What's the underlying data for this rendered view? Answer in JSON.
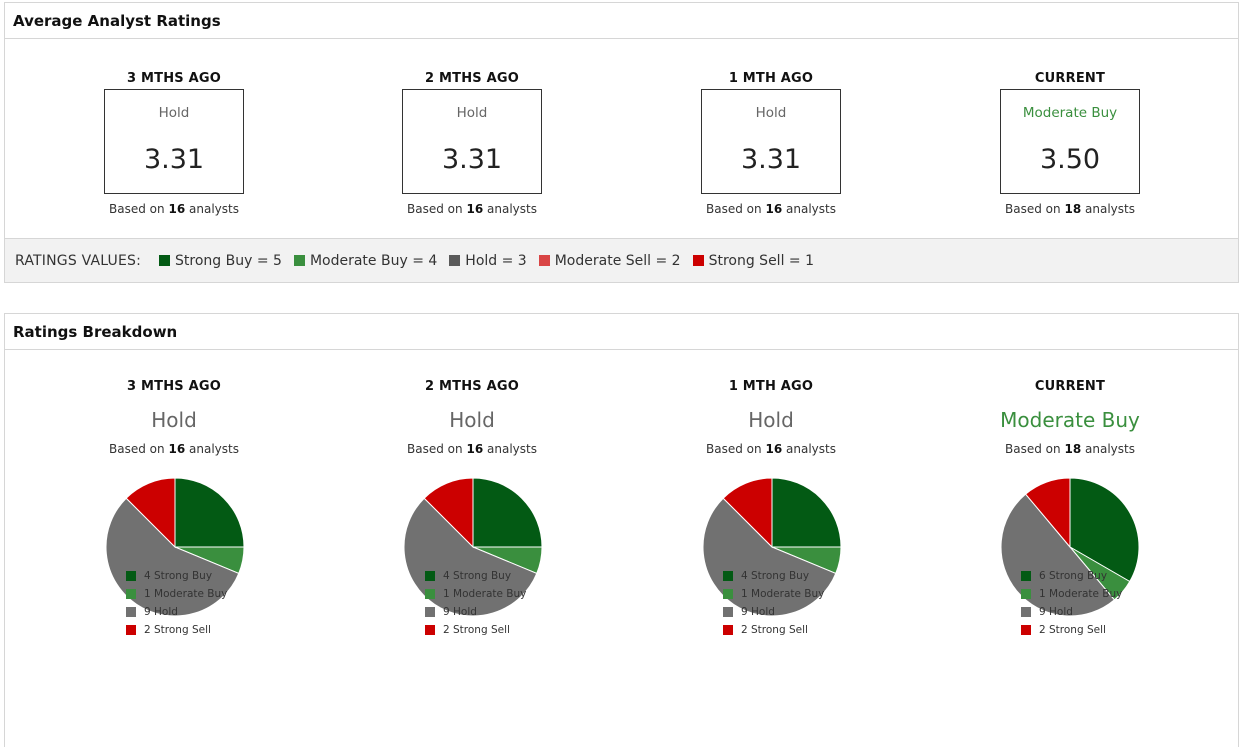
{
  "colors": {
    "strong_buy": "#035a14",
    "moderate_buy": "#3a8f3e",
    "hold": "#717171",
    "moderate_sell": "#d43d3d",
    "strong_sell": "#cc0000",
    "current_label": "#3a8f3e"
  },
  "average": {
    "title": "Average Analyst Ratings",
    "columns": [
      {
        "period": "3 MTHS AGO",
        "rating": "Hold",
        "value": "3.31",
        "based_prefix": "Based on",
        "count": "16",
        "based_suffix": "analysts"
      },
      {
        "period": "2 MTHS AGO",
        "rating": "Hold",
        "value": "3.31",
        "based_prefix": "Based on",
        "count": "16",
        "based_suffix": "analysts"
      },
      {
        "period": "1 MTH AGO",
        "rating": "Hold",
        "value": "3.31",
        "based_prefix": "Based on",
        "count": "16",
        "based_suffix": "analysts"
      },
      {
        "period": "CURRENT",
        "rating": "Moderate Buy",
        "value": "3.50",
        "based_prefix": "Based on",
        "count": "18",
        "based_suffix": "analysts"
      }
    ],
    "legend": {
      "title": "RATINGS VALUES:",
      "items": [
        {
          "label": "Strong Buy = 5",
          "color": "#035a14"
        },
        {
          "label": "Moderate Buy = 4",
          "color": "#3a8f3e"
        },
        {
          "label": "Hold = 3",
          "color": "#5a5a5a"
        },
        {
          "label": "Moderate Sell = 2",
          "color": "#d94545"
        },
        {
          "label": "Strong Sell = 1",
          "color": "#cc0000"
        }
      ]
    }
  },
  "breakdown": {
    "title": "Ratings Breakdown",
    "columns": [
      {
        "period": "3 MTHS AGO",
        "rating": "Hold",
        "based_prefix": "Based on",
        "count": "16",
        "based_suffix": "analysts",
        "legend": [
          "4 Strong Buy",
          "1 Moderate Buy",
          "9 Hold",
          "2 Strong Sell"
        ]
      },
      {
        "period": "2 MTHS AGO",
        "rating": "Hold",
        "based_prefix": "Based on",
        "count": "16",
        "based_suffix": "analysts",
        "legend": [
          "4 Strong Buy",
          "1 Moderate Buy",
          "9 Hold",
          "2 Strong Sell"
        ]
      },
      {
        "period": "1 MTH AGO",
        "rating": "Hold",
        "based_prefix": "Based on",
        "count": "16",
        "based_suffix": "analysts",
        "legend": [
          "4 Strong Buy",
          "1 Moderate Buy",
          "9 Hold",
          "2 Strong Sell"
        ]
      },
      {
        "period": "CURRENT",
        "rating": "Moderate Buy",
        "based_prefix": "Based on",
        "count": "18",
        "based_suffix": "analysts",
        "legend": [
          "6 Strong Buy",
          "1 Moderate Buy",
          "9 Hold",
          "2 Strong Sell"
        ]
      }
    ]
  },
  "chart_data": [
    {
      "type": "pie",
      "categories": [
        "Strong Buy",
        "Moderate Buy",
        "Hold",
        "Strong Sell"
      ],
      "values": [
        4,
        1,
        9,
        2
      ]
    },
    {
      "type": "pie",
      "categories": [
        "Strong Buy",
        "Moderate Buy",
        "Hold",
        "Strong Sell"
      ],
      "values": [
        4,
        1,
        9,
        2
      ]
    },
    {
      "type": "pie",
      "categories": [
        "Strong Buy",
        "Moderate Buy",
        "Hold",
        "Strong Sell"
      ],
      "values": [
        4,
        1,
        9,
        2
      ]
    },
    {
      "type": "pie",
      "categories": [
        "Strong Buy",
        "Moderate Buy",
        "Hold",
        "Strong Sell"
      ],
      "values": [
        6,
        1,
        9,
        2
      ]
    }
  ]
}
